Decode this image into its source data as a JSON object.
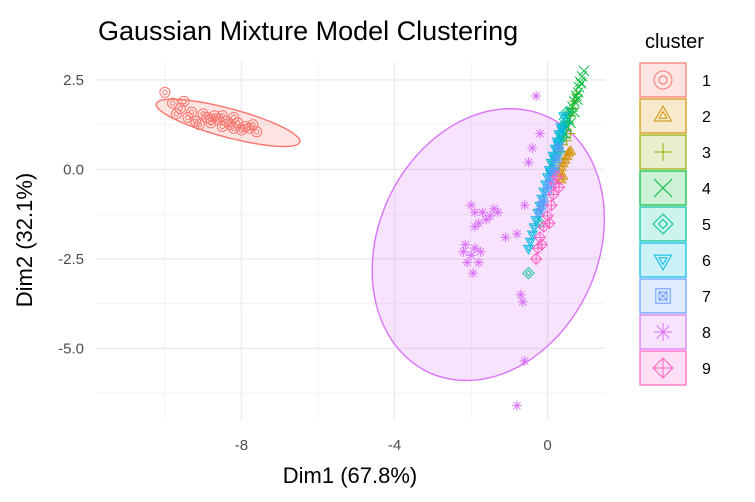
{
  "chart_data": {
    "type": "scatter",
    "title": "Gaussian Mixture Model Clustering",
    "xlabel": "Dim1 (67.8%)",
    "ylabel": "Dim2 (32.1%)",
    "xlim": [
      -11.8,
      1.5
    ],
    "ylim": [
      -7.0,
      3.0
    ],
    "x_ticks": [
      -8,
      -4,
      0
    ],
    "x_tick_labels": [
      "-8",
      "-4",
      "0"
    ],
    "y_ticks": [
      2.5,
      0.0,
      -2.5,
      -5.0
    ],
    "y_tick_labels": [
      "2.5",
      "0.0",
      "-2.5",
      "-5.0"
    ],
    "grid": true,
    "legend": {
      "title": "cluster",
      "position": "right",
      "entries": [
        "1",
        "2",
        "3",
        "4",
        "5",
        "6",
        "7",
        "8",
        "9"
      ]
    },
    "series": [
      {
        "name": "1",
        "color": "#F8766D",
        "shape": "circle-dot",
        "points": [
          [
            -10.0,
            2.15
          ],
          [
            -9.8,
            1.85
          ],
          [
            -9.5,
            1.9
          ],
          [
            -9.6,
            1.7
          ],
          [
            -9.3,
            1.6
          ],
          [
            -9.4,
            1.45
          ],
          [
            -9.2,
            1.35
          ],
          [
            -9.0,
            1.55
          ],
          [
            -8.9,
            1.45
          ],
          [
            -8.8,
            1.3
          ],
          [
            -8.7,
            1.5
          ],
          [
            -8.6,
            1.4
          ],
          [
            -8.5,
            1.2
          ],
          [
            -8.4,
            1.35
          ],
          [
            -8.3,
            1.25
          ],
          [
            -8.2,
            1.45
          ],
          [
            -8.1,
            1.3
          ],
          [
            -8.0,
            1.1
          ],
          [
            -7.9,
            1.2
          ],
          [
            -7.8,
            1.15
          ],
          [
            -7.6,
            1.05
          ],
          [
            -9.1,
            1.25
          ],
          [
            -8.8,
            1.4
          ],
          [
            -8.5,
            1.5
          ],
          [
            -8.2,
            1.15
          ],
          [
            -7.7,
            1.25
          ],
          [
            -9.7,
            1.55
          ]
        ],
        "ellipse": {
          "center": [
            -8.35,
            1.3
          ],
          "semi_axes": [
            1.95,
            0.4
          ],
          "angle_deg": -16
        }
      },
      {
        "name": "2",
        "color": "#D39200",
        "shape": "triangle-up-in-triangle",
        "points": [
          [
            0.3,
            -0.1
          ],
          [
            0.35,
            0.05
          ],
          [
            0.4,
            0.15
          ],
          [
            0.45,
            0.25
          ],
          [
            0.5,
            0.35
          ],
          [
            0.55,
            0.45
          ],
          [
            0.35,
            -0.3
          ],
          [
            0.4,
            -0.2
          ],
          [
            0.6,
            0.5
          ]
        ]
      },
      {
        "name": "3",
        "color": "#93AA00",
        "shape": "plus",
        "points": [
          [
            0.3,
            0.3
          ],
          [
            0.35,
            0.5
          ],
          [
            0.4,
            0.7
          ],
          [
            0.45,
            0.9
          ],
          [
            0.5,
            1.1
          ],
          [
            0.55,
            1.3
          ],
          [
            0.6,
            1.5
          ],
          [
            0.65,
            1.7
          ],
          [
            0.7,
            1.9
          ],
          [
            0.75,
            2.1
          ],
          [
            0.5,
            0.8
          ],
          [
            0.45,
            1.2
          ],
          [
            0.55,
            1.6
          ],
          [
            0.6,
            1.0
          ]
        ]
      },
      {
        "name": "4",
        "color": "#00BA38",
        "shape": "x",
        "points": [
          [
            0.45,
            1.0
          ],
          [
            0.5,
            1.2
          ],
          [
            0.55,
            1.4
          ],
          [
            0.6,
            1.6
          ],
          [
            0.65,
            1.75
          ],
          [
            0.7,
            1.9
          ],
          [
            0.75,
            2.05
          ],
          [
            0.8,
            2.15
          ],
          [
            0.82,
            2.3
          ],
          [
            0.85,
            2.45
          ],
          [
            0.9,
            2.6
          ],
          [
            0.95,
            2.75
          ],
          [
            0.6,
            1.3
          ],
          [
            0.7,
            1.6
          ],
          [
            0.78,
            1.95
          ],
          [
            0.88,
            2.4
          ]
        ]
      },
      {
        "name": "5",
        "color": "#00C19F",
        "shape": "diamond-in-diamond",
        "points": [
          [
            0.2,
            0.4
          ],
          [
            0.25,
            0.6
          ],
          [
            0.3,
            0.8
          ],
          [
            0.35,
            1.0
          ],
          [
            0.4,
            1.2
          ],
          [
            0.45,
            1.4
          ],
          [
            0.5,
            1.6
          ],
          [
            0.15,
            0.2
          ],
          [
            0.1,
            0.0
          ],
          [
            0.3,
            0.5
          ],
          [
            0.38,
            0.9
          ],
          [
            0.48,
            1.3
          ],
          [
            -0.5,
            -2.9
          ],
          [
            -0.2,
            -1.5
          ]
        ]
      },
      {
        "name": "6",
        "color": "#00B9E3",
        "shape": "triangle-down-in-triangle",
        "points": [
          [
            -0.4,
            -1.8
          ],
          [
            -0.3,
            -1.4
          ],
          [
            -0.2,
            -1.0
          ],
          [
            -0.1,
            -0.6
          ],
          [
            0.0,
            -0.2
          ],
          [
            0.05,
            0.0
          ],
          [
            0.1,
            0.2
          ],
          [
            0.15,
            0.4
          ],
          [
            0.2,
            0.6
          ],
          [
            0.25,
            0.8
          ],
          [
            0.3,
            1.0
          ],
          [
            0.35,
            1.2
          ],
          [
            -0.35,
            -1.6
          ],
          [
            -0.25,
            -1.2
          ],
          [
            -0.15,
            -0.8
          ],
          [
            -0.05,
            -0.4
          ],
          [
            0.08,
            -0.1
          ],
          [
            0.18,
            0.3
          ],
          [
            0.28,
            0.7
          ],
          [
            0.38,
            1.1
          ],
          [
            -0.5,
            -2.2
          ],
          [
            -0.45,
            -2.0
          ],
          [
            0.42,
            1.5
          ]
        ]
      },
      {
        "name": "7",
        "color": "#619CFF",
        "shape": "square-x",
        "points": [
          [
            -0.2,
            -1.2
          ],
          [
            -0.1,
            -0.9
          ],
          [
            0.0,
            -0.6
          ],
          [
            0.1,
            -0.3
          ],
          [
            0.2,
            0.0
          ],
          [
            0.25,
            0.3
          ],
          [
            0.3,
            0.6
          ],
          [
            -0.15,
            -1.0
          ],
          [
            0.05,
            -0.4
          ],
          [
            0.15,
            -0.1
          ]
        ]
      },
      {
        "name": "8",
        "color": "#DB72FB",
        "shape": "asterisk",
        "points": [
          [
            -2.0,
            -1.0
          ],
          [
            -1.9,
            -1.2
          ],
          [
            -1.8,
            -1.5
          ],
          [
            -1.7,
            -1.2
          ],
          [
            -1.6,
            -1.4
          ],
          [
            -1.5,
            -1.3
          ],
          [
            -1.9,
            -1.6
          ],
          [
            -1.4,
            -1.1
          ],
          [
            -1.3,
            -1.2
          ],
          [
            -0.8,
            -1.8
          ],
          [
            -2.2,
            -2.3
          ],
          [
            -2.1,
            -2.6
          ],
          [
            -2.0,
            -2.4
          ],
          [
            -1.9,
            -2.2
          ],
          [
            -1.8,
            -2.6
          ],
          [
            -1.95,
            -2.9
          ],
          [
            -2.15,
            -2.1
          ],
          [
            -1.75,
            -2.3
          ],
          [
            -1.1,
            -1.9
          ],
          [
            -0.6,
            -1.0
          ],
          [
            -0.7,
            -3.5
          ],
          [
            -0.65,
            -3.7
          ],
          [
            -0.6,
            -5.35
          ],
          [
            -0.8,
            -6.6
          ],
          [
            -0.3,
            2.05
          ],
          [
            -0.4,
            0.6
          ],
          [
            -0.2,
            1.0
          ],
          [
            -0.5,
            0.2
          ]
        ],
        "ellipse": {
          "center": [
            -1.55,
            -2.1
          ],
          "semi_axes": [
            2.9,
            3.9
          ],
          "angle_deg": -20
        }
      },
      {
        "name": "9",
        "color": "#FF61C3",
        "shape": "diamond-plus",
        "points": [
          [
            -0.3,
            -2.5
          ],
          [
            -0.25,
            -2.2
          ],
          [
            -0.2,
            -1.9
          ],
          [
            -0.1,
            -1.6
          ],
          [
            0.0,
            -1.3
          ],
          [
            0.1,
            -1.0
          ],
          [
            0.15,
            -0.7
          ],
          [
            0.2,
            -0.4
          ],
          [
            -0.15,
            -2.1
          ],
          [
            0.05,
            -1.5
          ],
          [
            0.25,
            -0.2
          ],
          [
            0.3,
            -0.5
          ]
        ]
      }
    ]
  }
}
